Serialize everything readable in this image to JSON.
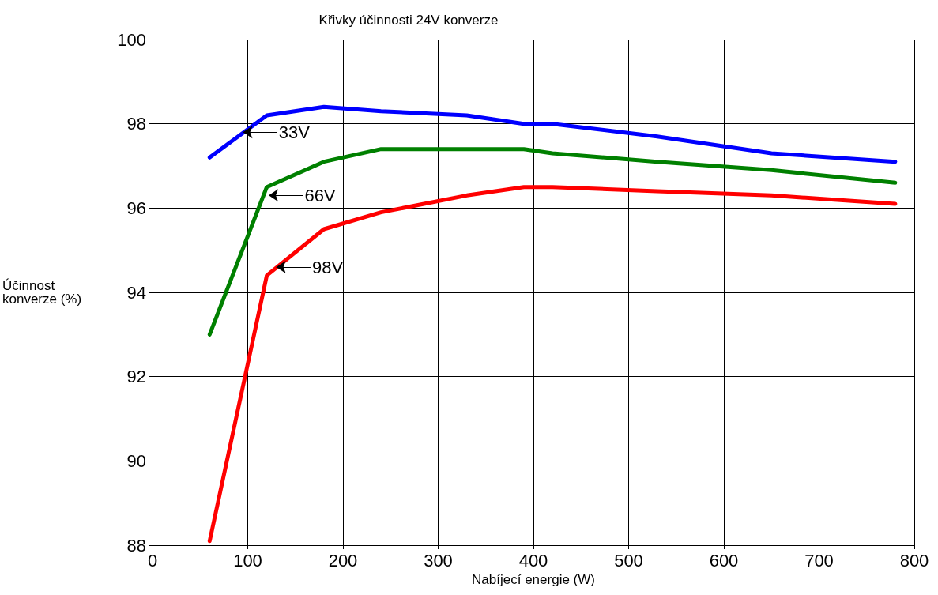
{
  "chart_data": {
    "type": "line",
    "title": "Křivky účinnosti 24V konverze",
    "xlabel": "Nabíjecí energie (W)",
    "ylabel": "Účinnost\nkonverze (%)",
    "x": [
      60,
      120,
      180,
      240,
      330,
      390,
      420,
      530,
      650,
      780
    ],
    "series": [
      {
        "color": "#0000ff",
        "values": [
          97.2,
          98.2,
          98.4,
          98.3,
          98.2,
          98.0,
          98.0,
          97.7,
          97.3,
          97.1
        ]
      },
      {
        "color": "#008000",
        "values": [
          93.0,
          96.5,
          97.1,
          97.4,
          97.4,
          97.4,
          97.3,
          97.1,
          96.9,
          96.6
        ]
      },
      {
        "color": "#ff0000",
        "values": [
          88.1,
          94.4,
          95.5,
          95.9,
          96.3,
          96.5,
          96.5,
          96.4,
          96.3,
          96.1
        ]
      }
    ],
    "annotations": [
      {
        "text": "33V",
        "x": 95,
        "y": 97.8
      },
      {
        "text": "66V",
        "x": 122,
        "y": 96.3
      },
      {
        "text": "98V",
        "x": 130,
        "y": 94.6
      }
    ],
    "xlim": [
      0,
      800
    ],
    "xticks": [
      0,
      100,
      200,
      300,
      400,
      500,
      600,
      700,
      800
    ],
    "ylim": [
      88,
      100
    ],
    "yticks": [
      88,
      90,
      92,
      94,
      96,
      98,
      100
    ],
    "grid": true,
    "marker": "none",
    "line_style": "solid"
  }
}
